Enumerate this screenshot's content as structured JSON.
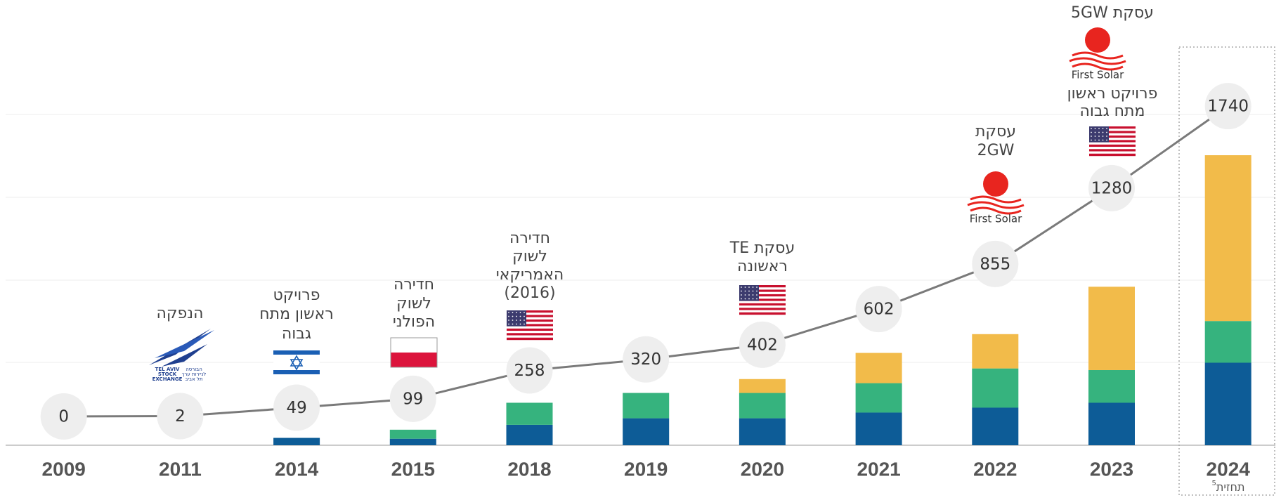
{
  "chart_data": {
    "type": "bar",
    "stacked": true,
    "categories": [
      "2009",
      "2011",
      "2014",
      "2015",
      "2018",
      "2019",
      "2020",
      "2021",
      "2022",
      "2023",
      "2024"
    ],
    "series": [
      {
        "color": "#0d5c97",
        "values": [
          0,
          0,
          9,
          8,
          25,
          33,
          33,
          40,
          46,
          52,
          101
        ]
      },
      {
        "color": "#36b37e",
        "values": [
          0,
          0,
          0,
          11,
          27,
          31,
          31,
          36,
          48,
          40,
          51
        ]
      },
      {
        "color": "#f2bb4a",
        "values": [
          0,
          0,
          0,
          0,
          0,
          0,
          17,
          37,
          42,
          102,
          203
        ]
      },
      {
        "type": "line",
        "axis": "y2",
        "color": "#7a7a7a",
        "values": [
          0,
          2,
          49,
          99,
          258,
          320,
          402,
          602,
          855,
          1280,
          1740
        ]
      }
    ],
    "ylim": [
      0,
      545
    ],
    "y2lim": [
      0,
      2335
    ],
    "category_note": {
      "text": "תחזית",
      "mark": "5"
    },
    "annotations": [
      {
        "lines": [
          "הנפקה"
        ]
      },
      {
        "lines": [
          "פרויקט",
          "ראשון מתח",
          "גבוה"
        ]
      },
      {
        "lines": [
          "חדירה",
          "לשוק",
          "הפולני"
        ]
      },
      {
        "lines": [
          "חדירה",
          "לשוק",
          "האמריקאי",
          "(2016)"
        ]
      },
      {
        "lines": [
          "עסקת TE",
          "ראשונה"
        ]
      },
      {
        "lines": [
          "עסקת",
          "2GW"
        ]
      },
      {
        "lines": [
          "עסקת 5GW"
        ]
      },
      {
        "lines": [
          "פרויקט ראשון",
          "מתח גבוה"
        ]
      }
    ],
    "logos": {
      "tase": [
        "TEL AVIV",
        "STOCK",
        "EXCHANGE",
        "הבורסה",
        "לניירות ערך",
        "תל אביב"
      ],
      "first_solar": "First Solar"
    }
  }
}
